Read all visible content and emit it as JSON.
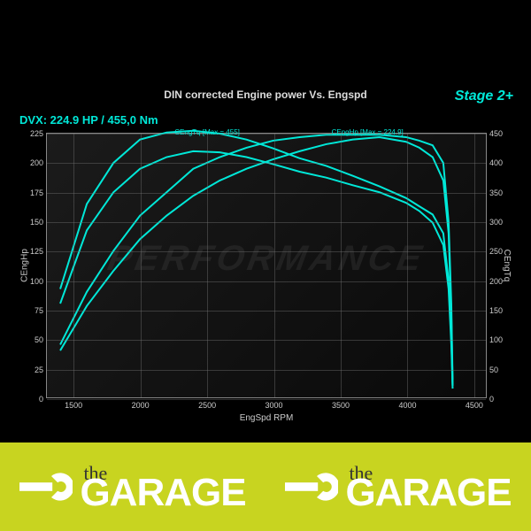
{
  "title": "DIN corrected Engine power Vs. Engspd",
  "stage": "Stage 2+",
  "dvx": "DVX:  224.9 HP / 455,0 Nm",
  "chart": {
    "type": "line",
    "background_color": "#000000",
    "grid_color": "rgba(120,120,120,0.4)",
    "line_color": "#00e8d8",
    "line_width": 2,
    "xlabel": "EngSpd RPM",
    "ylabel_left": "CEngHp",
    "ylabel_right": "CEngTq",
    "xlim": [
      1300,
      4600
    ],
    "ylim_left": [
      0,
      225
    ],
    "ylim_right": [
      0,
      450
    ],
    "xticks": [
      1500,
      2000,
      2500,
      3000,
      3500,
      4000,
      4500
    ],
    "yticks_left": [
      0,
      25,
      50,
      75,
      100,
      125,
      150,
      175,
      200,
      225
    ],
    "yticks_right": [
      0,
      50,
      100,
      150,
      200,
      250,
      300,
      350,
      400,
      450
    ],
    "hp_upper": [
      [
        1400,
        45
      ],
      [
        1600,
        90
      ],
      [
        1800,
        125
      ],
      [
        2000,
        155
      ],
      [
        2200,
        175
      ],
      [
        2400,
        195
      ],
      [
        2600,
        205
      ],
      [
        2800,
        213
      ],
      [
        3000,
        219
      ],
      [
        3200,
        222
      ],
      [
        3400,
        224
      ],
      [
        3600,
        224
      ],
      [
        3800,
        224
      ],
      [
        4000,
        222
      ],
      [
        4100,
        219
      ],
      [
        4200,
        215
      ],
      [
        4280,
        200
      ],
      [
        4320,
        150
      ],
      [
        4340,
        80
      ],
      [
        4350,
        15
      ]
    ],
    "hp_lower": [
      [
        1400,
        40
      ],
      [
        1600,
        78
      ],
      [
        1800,
        108
      ],
      [
        2000,
        135
      ],
      [
        2200,
        155
      ],
      [
        2400,
        172
      ],
      [
        2600,
        185
      ],
      [
        2800,
        195
      ],
      [
        3000,
        203
      ],
      [
        3200,
        210
      ],
      [
        3400,
        216
      ],
      [
        3600,
        220
      ],
      [
        3800,
        222
      ],
      [
        4000,
        218
      ],
      [
        4100,
        213
      ],
      [
        4200,
        205
      ],
      [
        4280,
        185
      ],
      [
        4320,
        140
      ],
      [
        4340,
        70
      ],
      [
        4350,
        10
      ]
    ],
    "tq_upper": [
      [
        1400,
        185
      ],
      [
        1600,
        330
      ],
      [
        1800,
        400
      ],
      [
        2000,
        440
      ],
      [
        2200,
        452
      ],
      [
        2400,
        455
      ],
      [
        2600,
        450
      ],
      [
        2800,
        440
      ],
      [
        3000,
        425
      ],
      [
        3200,
        408
      ],
      [
        3400,
        395
      ],
      [
        3600,
        378
      ],
      [
        3800,
        360
      ],
      [
        4000,
        340
      ],
      [
        4100,
        326
      ],
      [
        4200,
        312
      ],
      [
        4280,
        280
      ],
      [
        4320,
        200
      ],
      [
        4340,
        100
      ],
      [
        4350,
        20
      ]
    ],
    "tq_lower": [
      [
        1400,
        160
      ],
      [
        1600,
        285
      ],
      [
        1800,
        350
      ],
      [
        2000,
        390
      ],
      [
        2200,
        410
      ],
      [
        2400,
        420
      ],
      [
        2600,
        418
      ],
      [
        2800,
        410
      ],
      [
        3000,
        398
      ],
      [
        3200,
        385
      ],
      [
        3400,
        375
      ],
      [
        3600,
        362
      ],
      [
        3800,
        350
      ],
      [
        4000,
        332
      ],
      [
        4100,
        318
      ],
      [
        4200,
        298
      ],
      [
        4280,
        260
      ],
      [
        4320,
        185
      ],
      [
        4340,
        90
      ],
      [
        4350,
        15
      ]
    ],
    "anno_tq": "CEngTq [Max = 455]",
    "anno_hp": "CEngHp [Max = 224.9]",
    "anno_tq_x": 2500,
    "anno_hp_x": 3700
  },
  "watermark": "PERFORMANCE",
  "footer": {
    "the": "the",
    "brand": "GARAGE",
    "bg_color": "#c8d420",
    "text_color": "#ffffff"
  }
}
